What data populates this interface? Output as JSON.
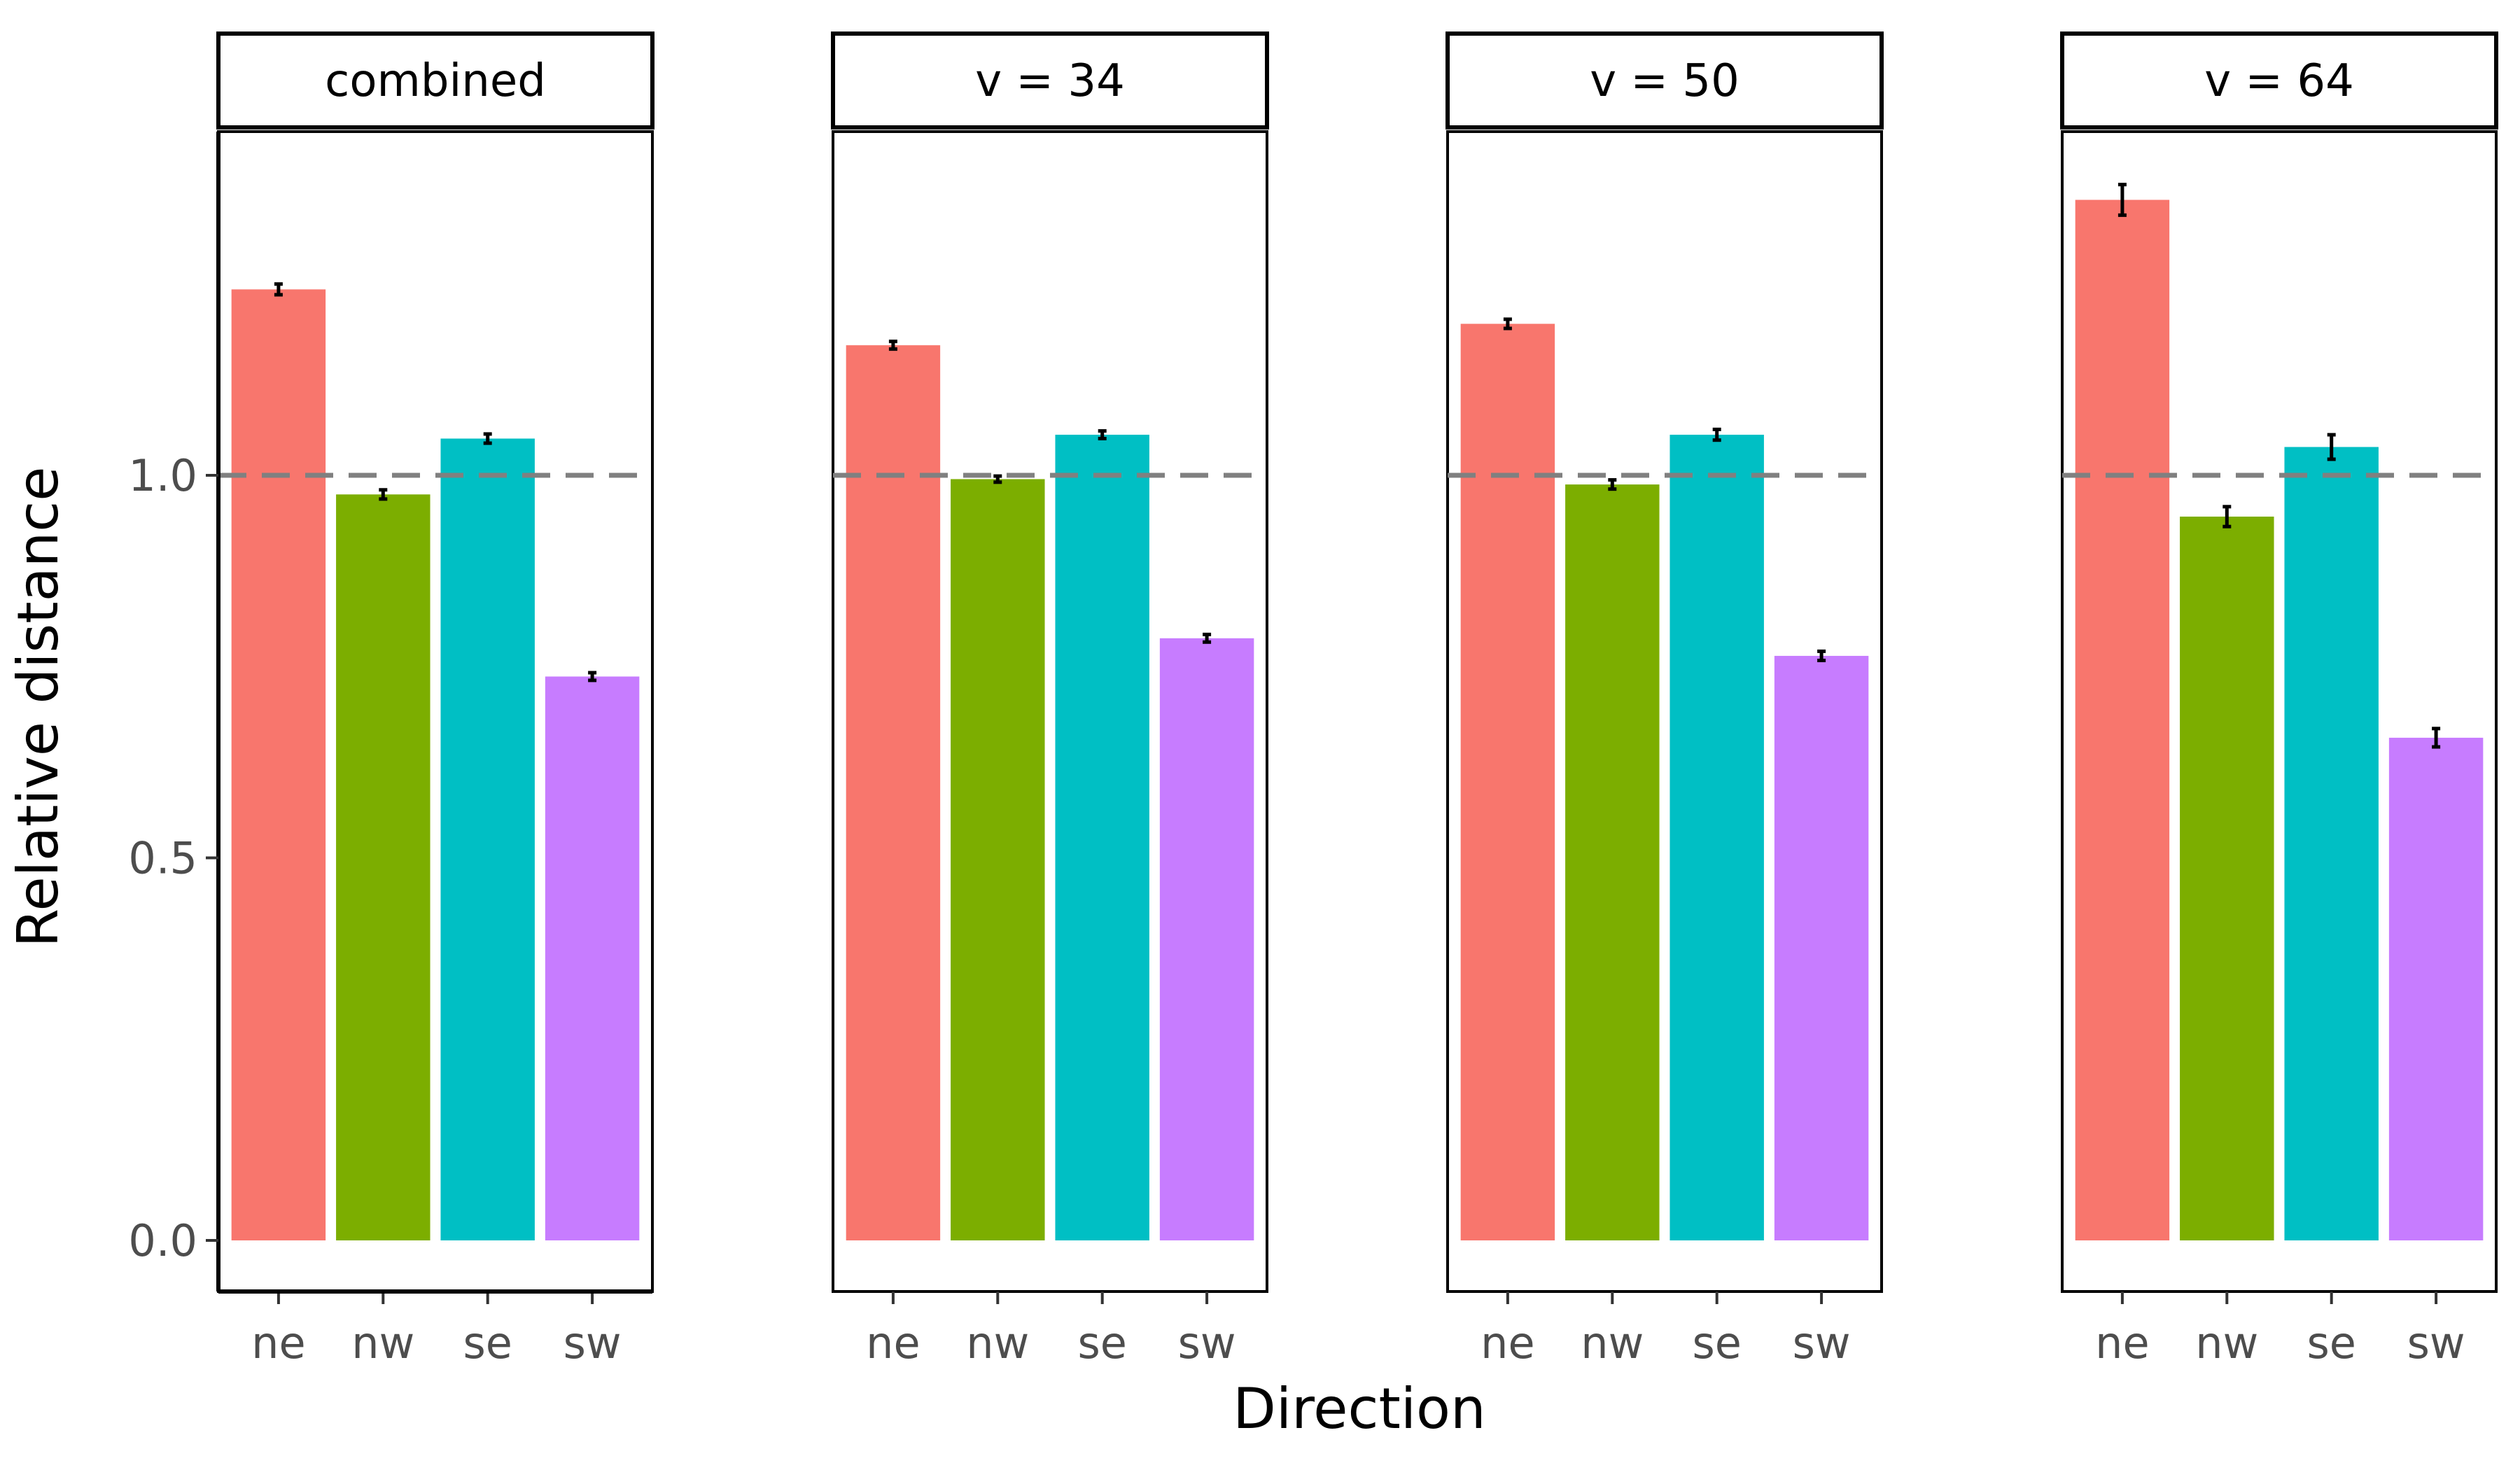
{
  "chart_data": {
    "type": "bar",
    "xlabel": "Direction",
    "ylabel": "Relative distance",
    "categories": [
      "ne",
      "nw",
      "se",
      "sw"
    ],
    "ylim": [
      -0.07,
      1.45
    ],
    "yticks": [
      0.0,
      0.5,
      1.0
    ],
    "ytick_labels": [
      "0.0",
      "0.5",
      "1.0"
    ],
    "reference_line": 1.0,
    "reference_line_style": "dashed",
    "grid": false,
    "legend": "none",
    "colors": {
      "ne": "#F8766D",
      "nw": "#7CAE00",
      "se": "#00BFC4",
      "sw": "#C77CFF",
      "reference_line": "#808080",
      "error_bar": "#000000"
    },
    "facets": [
      {
        "label": "combined",
        "values": [
          1.243,
          0.975,
          1.048,
          0.737
        ],
        "errors": [
          0.007,
          0.006,
          0.006,
          0.005
        ]
      },
      {
        "label": "v = 34",
        "values": [
          1.17,
          0.995,
          1.053,
          0.787
        ],
        "errors": [
          0.005,
          0.004,
          0.005,
          0.005
        ]
      },
      {
        "label": "v = 50",
        "values": [
          1.198,
          0.988,
          1.053,
          0.764
        ],
        "errors": [
          0.006,
          0.006,
          0.007,
          0.006
        ]
      },
      {
        "label": "v = 64",
        "values": [
          1.36,
          0.946,
          1.037,
          0.657
        ],
        "errors": [
          0.02,
          0.013,
          0.016,
          0.012
        ]
      }
    ]
  }
}
